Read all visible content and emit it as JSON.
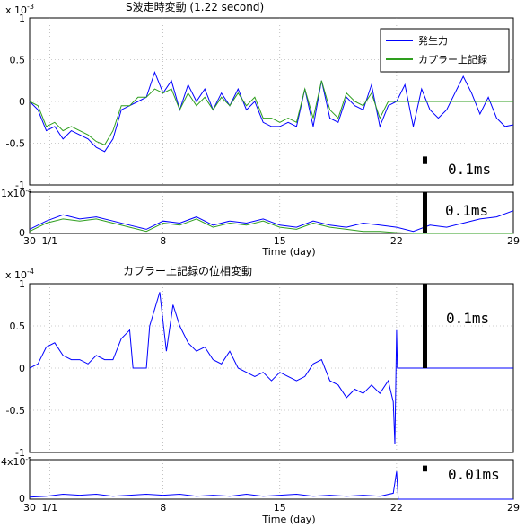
{
  "colors": {
    "blue": "#0000ff",
    "green": "#2e9e1e",
    "axis": "#000000",
    "grid": "#999999"
  },
  "x_tick_labels": [
    "30",
    "1/1",
    "8",
    "15",
    "22",
    "29"
  ],
  "x_tick_values": [
    0,
    1.2,
    8,
    15,
    22,
    29
  ],
  "xlabel": "Time (day)",
  "chart_data": [
    {
      "type": "line",
      "title": "S波走時変動 (1.22 second)",
      "exponent_label": "x 10",
      "exponent_sup": "-3",
      "xlim": [
        0,
        29
      ],
      "ylim": [
        -1,
        1
      ],
      "y_ticks": [
        "1",
        "0.5",
        "0",
        "-0.5",
        "-1"
      ],
      "y_tick_values": [
        1,
        0.5,
        0,
        -0.5,
        -1
      ],
      "legend_position": "top-right",
      "scale_marker": {
        "label": "0.1ms",
        "x": 23.7,
        "y_range": [
          -0.75,
          -0.66
        ]
      },
      "series": [
        {
          "name": "発生力",
          "color": "#0000ff",
          "x": [
            0,
            0.5,
            1,
            1.5,
            2,
            2.5,
            3,
            3.5,
            4,
            4.5,
            5,
            5.5,
            6,
            6.5,
            7,
            7.5,
            8,
            8.5,
            9,
            9.5,
            10,
            10.5,
            11,
            11.5,
            12,
            12.5,
            13,
            13.5,
            14,
            14.5,
            15,
            15.5,
            16,
            16.5,
            17,
            17.5,
            18,
            18.5,
            19,
            19.5,
            20,
            20.5,
            21,
            21.5,
            22,
            22.5,
            23,
            23.5,
            24,
            24.5,
            25,
            25.5,
            26,
            26.5,
            27,
            27.5,
            28,
            28.5,
            29
          ],
          "y": [
            0,
            -0.1,
            -0.35,
            -0.3,
            -0.45,
            -0.35,
            -0.4,
            -0.45,
            -0.55,
            -0.6,
            -0.45,
            -0.1,
            -0.05,
            0,
            0.05,
            0.35,
            0.1,
            0.25,
            -0.1,
            0.2,
            0,
            0.15,
            -0.1,
            0.1,
            -0.05,
            0.15,
            -0.1,
            0,
            -0.25,
            -0.3,
            -0.3,
            -0.25,
            -0.3,
            0.15,
            -0.3,
            0.25,
            -0.2,
            -0.25,
            0.05,
            -0.05,
            -0.1,
            0.2,
            -0.3,
            -0.05,
            0,
            0.2,
            -0.3,
            0.15,
            -0.1,
            -0.2,
            -0.1,
            0.1,
            0.3,
            0.1,
            -0.15,
            0.05,
            -0.2,
            -0.3,
            -0.28
          ]
        },
        {
          "name": "カプラー上記録",
          "color": "#2e9e1e",
          "x": [
            0,
            0.5,
            1,
            1.5,
            2,
            2.5,
            3,
            3.5,
            4,
            4.5,
            5,
            5.5,
            6,
            6.5,
            7,
            7.5,
            8,
            8.5,
            9,
            9.5,
            10,
            10.5,
            11,
            11.5,
            12,
            12.5,
            13,
            13.5,
            14,
            14.5,
            15,
            15.5,
            16,
            16.5,
            17,
            17.5,
            18,
            18.5,
            19,
            19.5,
            20,
            20.5,
            21,
            21.5,
            22,
            22.5,
            23,
            23.5,
            24,
            24.5,
            25,
            25.5,
            26,
            26.5,
            27,
            27.5,
            28,
            28.5,
            29
          ],
          "y": [
            0,
            -0.05,
            -0.3,
            -0.25,
            -0.35,
            -0.3,
            -0.35,
            -0.4,
            -0.48,
            -0.52,
            -0.35,
            -0.05,
            -0.05,
            0.05,
            0.05,
            0.15,
            0.1,
            0.15,
            -0.1,
            0.1,
            -0.05,
            0.05,
            -0.1,
            0.05,
            -0.05,
            0.1,
            -0.05,
            0.05,
            -0.2,
            -0.2,
            -0.25,
            -0.2,
            -0.25,
            0.15,
            -0.2,
            0.25,
            -0.1,
            -0.2,
            0.1,
            0,
            -0.05,
            0.1,
            -0.2,
            0,
            0,
            0,
            0,
            0,
            0,
            0,
            0,
            0,
            0,
            0,
            0,
            0,
            0,
            0,
            0
          ]
        }
      ]
    },
    {
      "type": "line",
      "title": "",
      "y_tick_label_top": "1x10",
      "y_tick_label_top_sup": "-4",
      "y_tick_label_bottom": "0",
      "ylim": [
        0,
        1
      ],
      "scale_marker": {
        "label": "0.1ms",
        "x": 23.7,
        "y_range": [
          0,
          1
        ]
      },
      "series": [
        {
          "name": "",
          "color": "#0000ff",
          "x": [
            0,
            1,
            2,
            3,
            4,
            5,
            6,
            7,
            8,
            9,
            10,
            11,
            12,
            13,
            14,
            15,
            16,
            17,
            18,
            19,
            20,
            21,
            22,
            23,
            24,
            25,
            26,
            27,
            28,
            29
          ],
          "y": [
            0.1,
            0.3,
            0.45,
            0.35,
            0.4,
            0.3,
            0.2,
            0.1,
            0.3,
            0.25,
            0.4,
            0.2,
            0.3,
            0.25,
            0.35,
            0.2,
            0.15,
            0.3,
            0.2,
            0.15,
            0.25,
            0.2,
            0.15,
            0.05,
            0.2,
            0.15,
            0.25,
            0.35,
            0.4,
            0.55
          ]
        },
        {
          "name": "",
          "color": "#2e9e1e",
          "x": [
            0,
            1,
            2,
            3,
            4,
            5,
            6,
            7,
            8,
            9,
            10,
            11,
            12,
            13,
            14,
            15,
            16,
            17,
            18,
            19,
            20,
            21,
            22,
            23,
            24,
            25,
            26,
            27,
            28,
            29
          ],
          "y": [
            0.05,
            0.25,
            0.35,
            0.3,
            0.35,
            0.25,
            0.15,
            0.05,
            0.25,
            0.2,
            0.35,
            0.15,
            0.25,
            0.2,
            0.3,
            0.15,
            0.1,
            0.25,
            0.15,
            0.1,
            0.05,
            0.05,
            0.02,
            0,
            0,
            0,
            0,
            0,
            0,
            0
          ]
        }
      ]
    },
    {
      "type": "line",
      "title": "カプラー上記録の位相変動",
      "exponent_label": "x 10",
      "exponent_sup": "-4",
      "ylim": [
        -1,
        1
      ],
      "y_ticks": [
        "1",
        "0.5",
        "0",
        "-0.5",
        "-1"
      ],
      "y_tick_values": [
        1,
        0.5,
        0,
        -0.5,
        -1
      ],
      "scale_marker": {
        "label": "0.1ms",
        "x": 23.7,
        "y_range": [
          0,
          1
        ]
      },
      "series": [
        {
          "name": "",
          "color": "#0000ff",
          "x": [
            0,
            0.5,
            1,
            1.5,
            2,
            2.5,
            3,
            3.5,
            4,
            4.5,
            5,
            5.5,
            6,
            6.2,
            7,
            7.2,
            7.8,
            8.2,
            8.6,
            9,
            9.5,
            10,
            10.5,
            11,
            11.5,
            12,
            12.5,
            13,
            13.5,
            14,
            14.5,
            15,
            15.5,
            16,
            16.5,
            17,
            17.5,
            18,
            18.5,
            19,
            19.5,
            20,
            20.5,
            21,
            21.5,
            21.8,
            21.9,
            22,
            22.05,
            22.1,
            23,
            24,
            25,
            26,
            27,
            28,
            29
          ],
          "y": [
            0,
            0.05,
            0.25,
            0.3,
            0.15,
            0.1,
            0.1,
            0.05,
            0.15,
            0.1,
            0.1,
            0.35,
            0.45,
            0,
            0,
            0.5,
            0.9,
            0.2,
            0.75,
            0.5,
            0.3,
            0.2,
            0.25,
            0.1,
            0.05,
            0.2,
            0,
            -0.05,
            -0.1,
            -0.05,
            -0.15,
            -0.05,
            -0.1,
            -0.15,
            -0.1,
            0.05,
            0.1,
            -0.15,
            -0.2,
            -0.35,
            -0.25,
            -0.3,
            -0.2,
            -0.3,
            -0.15,
            -0.4,
            -0.9,
            0.45,
            0,
            0,
            0,
            0,
            0,
            0,
            0,
            0,
            0
          ]
        }
      ]
    },
    {
      "type": "line",
      "title": "",
      "y_tick_label_top": "4x10",
      "y_tick_label_top_sup": "-5",
      "y_tick_label_bottom": "0",
      "ylim": [
        0,
        4
      ],
      "scale_marker": {
        "label": "0.01ms",
        "x": 23.7,
        "y_range": [
          2.8,
          3.4
        ]
      },
      "series": [
        {
          "name": "",
          "color": "#0000ff",
          "x": [
            0,
            1,
            2,
            3,
            4,
            5,
            6,
            7,
            8,
            9,
            10,
            11,
            12,
            13,
            14,
            15,
            16,
            17,
            18,
            19,
            20,
            21,
            21.8,
            22,
            22.1,
            23,
            29
          ],
          "y": [
            0.2,
            0.3,
            0.5,
            0.4,
            0.5,
            0.3,
            0.4,
            0.5,
            0.4,
            0.5,
            0.3,
            0.4,
            0.3,
            0.5,
            0.3,
            0.4,
            0.5,
            0.3,
            0.4,
            0.3,
            0.4,
            0.3,
            0.6,
            2.8,
            0,
            0,
            0
          ]
        }
      ]
    }
  ]
}
